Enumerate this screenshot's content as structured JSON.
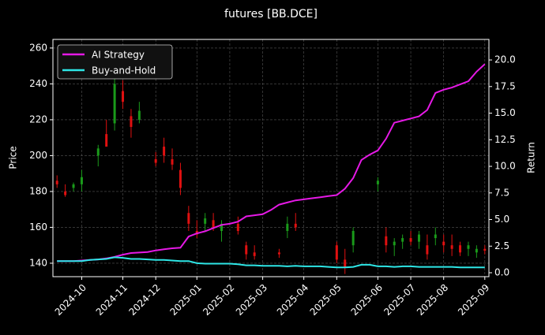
{
  "chart_data": {
    "type": "candlestick",
    "title": "futures [BB.DCE]",
    "ylabel": "Price",
    "y2label": "Return",
    "x": [
      null,
      null,
      null,
      "2024-10",
      null,
      null,
      null,
      null,
      "2024-11",
      null,
      null,
      null,
      "2024-12",
      null,
      null,
      null,
      null,
      "2025-01",
      null,
      null,
      null,
      "2025-02",
      null,
      null,
      null,
      "2025-03",
      null,
      null,
      null,
      null,
      "2025-04",
      null,
      null,
      null,
      "2025-05",
      null,
      null,
      null,
      null,
      "2025-06",
      null,
      null,
      null,
      "2025-07",
      null,
      null,
      null,
      "2025-08",
      null,
      null,
      null,
      null,
      "2025-09"
    ],
    "candles": {
      "open": [
        186,
        180,
        182,
        184,
        null,
        200,
        212,
        218,
        236,
        222,
        220,
        null,
        198,
        205,
        198,
        192,
        168,
        158,
        162,
        164,
        158,
        null,
        162,
        150,
        146,
        null,
        null,
        146,
        158,
        162,
        null,
        null,
        null,
        null,
        150,
        142,
        150,
        null,
        null,
        184,
        155,
        150,
        152,
        154,
        152,
        150,
        154,
        152,
        150,
        150,
        148,
        146,
        148
      ],
      "high": [
        189,
        184,
        185,
        192,
        null,
        206,
        220,
        246,
        242,
        226,
        230,
        null,
        202,
        210,
        204,
        196,
        172,
        164,
        168,
        168,
        164,
        null,
        166,
        152,
        150,
        null,
        null,
        148,
        166,
        168,
        null,
        null,
        null,
        null,
        152,
        148,
        160,
        null,
        null,
        188,
        160,
        154,
        156,
        158,
        158,
        156,
        160,
        156,
        156,
        152,
        152,
        150,
        150
      ],
      "low": [
        182,
        177,
        180,
        180,
        null,
        194,
        208,
        214,
        226,
        210,
        218,
        null,
        194,
        196,
        192,
        178,
        158,
        154,
        158,
        158,
        152,
        null,
        156,
        142,
        142,
        null,
        null,
        143,
        154,
        158,
        null,
        null,
        null,
        null,
        140,
        134,
        146,
        null,
        null,
        180,
        146,
        144,
        148,
        150,
        148,
        142,
        150,
        146,
        144,
        144,
        144,
        143,
        145
      ],
      "close": [
        184,
        178,
        184,
        188,
        null,
        204,
        205,
        240,
        230,
        216,
        225,
        null,
        196,
        200,
        195,
        182,
        162,
        156,
        165,
        160,
        162,
        null,
        158,
        145,
        144,
        null,
        null,
        145,
        162,
        160,
        null,
        null,
        null,
        null,
        142,
        138,
        158,
        null,
        null,
        186,
        150,
        152,
        154,
        152,
        156,
        145,
        156,
        150,
        148,
        146,
        150,
        148,
        147
      ]
    },
    "up_color": "#1a9a1a",
    "down_color": "#e01010",
    "series": [
      {
        "name": "AI Strategy",
        "color": "#e619e6",
        "axis": "y2",
        "values": [
          1.1,
          1.1,
          1.1,
          1.15,
          1.2,
          1.25,
          1.35,
          1.5,
          1.7,
          1.85,
          1.9,
          1.95,
          2.1,
          2.2,
          2.3,
          2.35,
          3.4,
          3.7,
          3.9,
          4.2,
          4.5,
          4.6,
          4.8,
          5.3,
          5.4,
          5.5,
          5.9,
          6.4,
          6.6,
          6.8,
          6.9,
          7.0,
          7.1,
          7.2,
          7.3,
          7.9,
          8.9,
          10.6,
          11.1,
          11.5,
          12.6,
          14.1,
          14.3,
          14.5,
          14.7,
          15.3,
          16.9,
          17.2,
          17.4,
          17.7,
          18.0,
          18.9,
          19.6
        ]
      },
      {
        "name": "Buy-and-Hold",
        "color": "#2ee6e6",
        "axis": "y2",
        "values": [
          1.1,
          1.1,
          1.1,
          1.1,
          1.2,
          1.25,
          1.3,
          1.45,
          1.4,
          1.3,
          1.3,
          1.25,
          1.2,
          1.2,
          1.15,
          1.1,
          1.1,
          0.9,
          0.85,
          0.85,
          0.85,
          0.85,
          0.8,
          0.7,
          0.7,
          0.65,
          0.65,
          0.65,
          0.6,
          0.65,
          0.6,
          0.6,
          0.6,
          0.55,
          0.5,
          0.5,
          0.55,
          0.75,
          0.75,
          0.6,
          0.6,
          0.55,
          0.6,
          0.6,
          0.55,
          0.55,
          0.55,
          0.55,
          0.55,
          0.5,
          0.5,
          0.5,
          0.5
        ]
      }
    ],
    "ylim": [
      132.5,
      264.8
    ],
    "yticks": [
      140,
      160,
      180,
      200,
      220,
      240,
      260
    ],
    "y2lim": [
      -0.37,
      21.93
    ],
    "y2ticks": [
      {
        "value": 0,
        "label": "0.0"
      },
      2.5,
      {
        "value": 5,
        "label": "5.0"
      },
      7.5,
      {
        "value": 10,
        "label": "10.0"
      },
      12.5,
      {
        "value": 15,
        "label": "15.0"
      },
      17.5,
      {
        "value": 20,
        "label": "20.0"
      }
    ],
    "grid": true,
    "legend": "upper left"
  }
}
